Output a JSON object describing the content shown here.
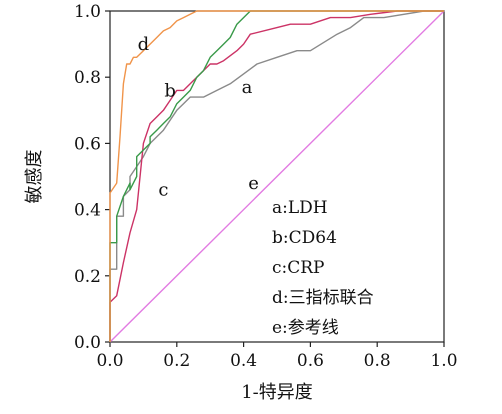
{
  "chart_data": {
    "type": "line",
    "xlabel": "1-特异度",
    "ylabel": "敏感度",
    "xlim": [
      0,
      1
    ],
    "ylim": [
      0,
      1
    ],
    "xticks": [
      "0.0",
      "0.2",
      "0.4",
      "0.6",
      "0.8",
      "1.0"
    ],
    "yticks": [
      "0.0",
      "0.2",
      "0.4",
      "0.6",
      "0.8",
      "1.0"
    ],
    "grid": false,
    "legend_position": "bottom-right",
    "legend": [
      "a:LDH",
      "b:CD64",
      "c:CRP",
      "d:三指标联合",
      "e:参考线"
    ],
    "series": [
      {
        "name": "a",
        "legend": "a:LDH",
        "color": "#8a8a8a",
        "label_at": [
          0.41,
          0.77
        ],
        "x": [
          0.0,
          0.0,
          0.02,
          0.02,
          0.04,
          0.04,
          0.06,
          0.06,
          0.08,
          0.1,
          0.12,
          0.14,
          0.16,
          0.18,
          0.2,
          0.22,
          0.24,
          0.28,
          0.32,
          0.36,
          0.4,
          0.44,
          0.5,
          0.56,
          0.6,
          0.68,
          0.72,
          0.76,
          0.82,
          0.88,
          0.94,
          1.0
        ],
        "y": [
          0.0,
          0.22,
          0.22,
          0.38,
          0.38,
          0.44,
          0.46,
          0.5,
          0.53,
          0.56,
          0.6,
          0.62,
          0.64,
          0.67,
          0.7,
          0.72,
          0.74,
          0.74,
          0.76,
          0.78,
          0.81,
          0.84,
          0.86,
          0.88,
          0.88,
          0.93,
          0.95,
          0.98,
          0.98,
          0.99,
          1.0,
          1.0
        ]
      },
      {
        "name": "b",
        "legend": "b:CD64",
        "color": "#cc3366",
        "label_at": [
          0.18,
          0.76
        ],
        "x": [
          0.0,
          0.0,
          0.02,
          0.04,
          0.06,
          0.08,
          0.1,
          0.12,
          0.14,
          0.16,
          0.18,
          0.2,
          0.22,
          0.24,
          0.26,
          0.28,
          0.3,
          0.32,
          0.34,
          0.38,
          0.4,
          0.42,
          0.5,
          0.54,
          0.6,
          0.66,
          0.72,
          0.78,
          0.86,
          0.92,
          1.0
        ],
        "y": [
          0.0,
          0.12,
          0.14,
          0.24,
          0.33,
          0.4,
          0.6,
          0.66,
          0.68,
          0.7,
          0.73,
          0.76,
          0.76,
          0.78,
          0.8,
          0.82,
          0.84,
          0.84,
          0.85,
          0.88,
          0.9,
          0.93,
          0.95,
          0.96,
          0.96,
          0.98,
          0.98,
          0.99,
          1.0,
          1.0,
          1.0
        ]
      },
      {
        "name": "c",
        "legend": "c:CRP",
        "color": "#3a9a4a",
        "label_at": [
          0.16,
          0.46
        ],
        "x": [
          0.0,
          0.0,
          0.02,
          0.02,
          0.04,
          0.06,
          0.06,
          0.08,
          0.08,
          0.1,
          0.12,
          0.12,
          0.14,
          0.16,
          0.18,
          0.2,
          0.22,
          0.24,
          0.26,
          0.28,
          0.3,
          0.32,
          0.34,
          0.36,
          0.38,
          0.4,
          0.42,
          0.44,
          0.5,
          0.6,
          0.8,
          1.0
        ],
        "y": [
          0.0,
          0.3,
          0.3,
          0.38,
          0.44,
          0.48,
          0.46,
          0.5,
          0.56,
          0.58,
          0.6,
          0.62,
          0.64,
          0.66,
          0.68,
          0.72,
          0.74,
          0.76,
          0.8,
          0.82,
          0.86,
          0.88,
          0.9,
          0.92,
          0.96,
          0.98,
          1.0,
          1.0,
          1.0,
          1.0,
          1.0,
          1.0
        ]
      },
      {
        "name": "d",
        "legend": "d:三指标联合",
        "color": "#f0944a",
        "label_at": [
          0.1,
          0.9
        ],
        "x": [
          0.0,
          0.0,
          0.02,
          0.03,
          0.04,
          0.05,
          0.06,
          0.07,
          0.08,
          0.1,
          0.12,
          0.14,
          0.16,
          0.18,
          0.2,
          0.22,
          0.24,
          0.26,
          0.3,
          0.36,
          0.42,
          0.5,
          0.6,
          0.7,
          0.8,
          0.9,
          1.0
        ],
        "y": [
          0.0,
          0.45,
          0.48,
          0.62,
          0.78,
          0.84,
          0.84,
          0.86,
          0.86,
          0.88,
          0.9,
          0.92,
          0.94,
          0.95,
          0.97,
          0.98,
          0.99,
          1.0,
          1.0,
          1.0,
          1.0,
          1.0,
          1.0,
          1.0,
          1.0,
          1.0,
          1.0
        ]
      },
      {
        "name": "e",
        "legend": "e:参考线",
        "color": "#e27be2",
        "label_at": [
          0.43,
          0.48
        ],
        "x": [
          0,
          1
        ],
        "y": [
          0,
          1
        ]
      }
    ]
  }
}
